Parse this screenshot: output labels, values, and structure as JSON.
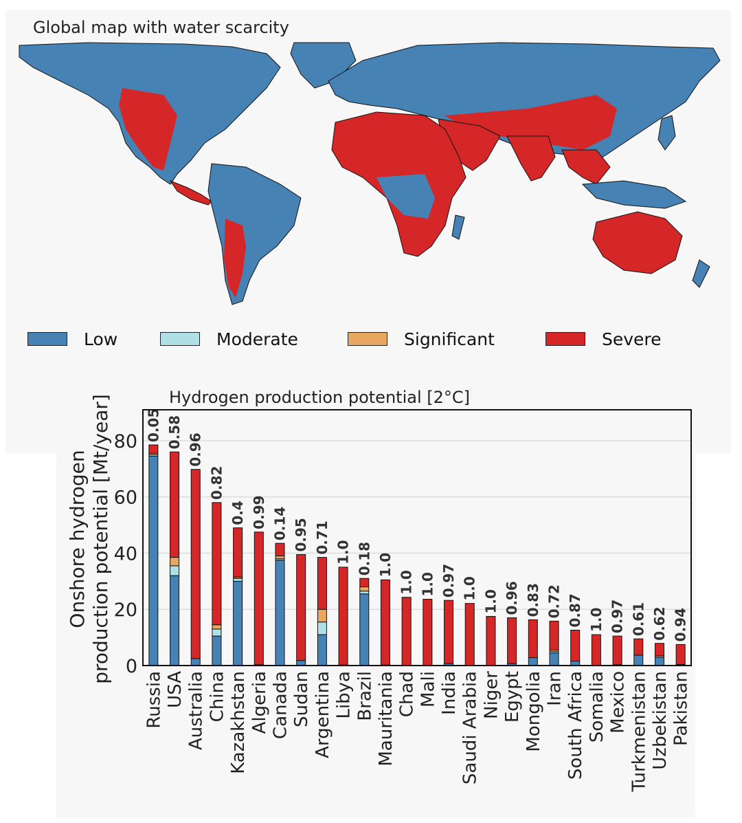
{
  "map": {
    "title": "Global map with water scarcity"
  },
  "legend": {
    "items": [
      {
        "label": "Low",
        "color": "#4682b4"
      },
      {
        "label": "Moderate",
        "color": "#b0e0e6"
      },
      {
        "label": "Significant",
        "color": "#e8a860"
      },
      {
        "label": "Severe",
        "color": "#d62728"
      }
    ]
  },
  "chart_data": {
    "type": "bar",
    "stacked": true,
    "title": "Hydrogen production potential [2°C]",
    "xlabel": "",
    "ylabel": "Onshore hydrogen production potential [Mt/year]",
    "ylim": [
      0,
      91
    ],
    "yticks": [
      0,
      20,
      40,
      60,
      80
    ],
    "grid": true,
    "categories": [
      "Russia",
      "USA",
      "Australia",
      "China",
      "Kazakhstan",
      "Algeria",
      "Canada",
      "Sudan",
      "Argentina",
      "Libya",
      "Brazil",
      "Mauritania",
      "Chad",
      "Mali",
      "India",
      "Saudi Arabia",
      "Niger",
      "Egypt",
      "Mongolia",
      "Iran",
      "South Africa",
      "Somalia",
      "Mexico",
      "Turkmenistan",
      "Uzbekistan",
      "Pakistan"
    ],
    "series": [
      {
        "name": "Low",
        "color": "#4682b4",
        "values": [
          74.5,
          32,
          2.5,
          10.5,
          30,
          0.3,
          37.5,
          1.8,
          11,
          0.2,
          25.5,
          0.2,
          0,
          0,
          0.7,
          0.1,
          0.1,
          0.7,
          2.8,
          4.5,
          1.6,
          0,
          0.3,
          3.7,
          3,
          0.4
        ]
      },
      {
        "name": "Moderate",
        "color": "#b0e0e6",
        "values": [
          0.5,
          3.5,
          0,
          2.5,
          1,
          0,
          0.5,
          0,
          4.5,
          0,
          1,
          0,
          0,
          0,
          0,
          0,
          0,
          0,
          0,
          0.5,
          0,
          0,
          0,
          0,
          0,
          0
        ]
      },
      {
        "name": "Significant",
        "color": "#e8a860",
        "values": [
          0.5,
          3,
          0,
          1.5,
          0.5,
          0,
          1,
          0,
          4.5,
          0,
          1.5,
          0,
          0,
          0,
          0,
          0,
          0,
          0,
          0,
          0.5,
          0,
          0,
          0,
          0,
          0.5,
          0
        ]
      },
      {
        "name": "Severe",
        "color": "#d62728",
        "values": [
          3,
          37.5,
          67.3,
          43.5,
          17.5,
          47.2,
          4.5,
          37.7,
          18.5,
          34.8,
          3,
          30.3,
          24.3,
          23.6,
          22.5,
          22,
          17.4,
          16.3,
          13.5,
          10.3,
          11,
          11,
          10.2,
          5.8,
          4.4,
          7.1
        ]
      }
    ],
    "bar_labels": [
      "0.05",
      "0.58",
      "0.96",
      "0.82",
      "0.4",
      "0.99",
      "0.14",
      "0.95",
      "0.71",
      "1.0",
      "0.18",
      "1.0",
      "1.0",
      "1.0",
      "0.97",
      "1.0",
      "1.0",
      "0.96",
      "0.83",
      "0.72",
      "0.87",
      "1.0",
      "0.97",
      "0.61",
      "0.62",
      "0.94"
    ]
  }
}
